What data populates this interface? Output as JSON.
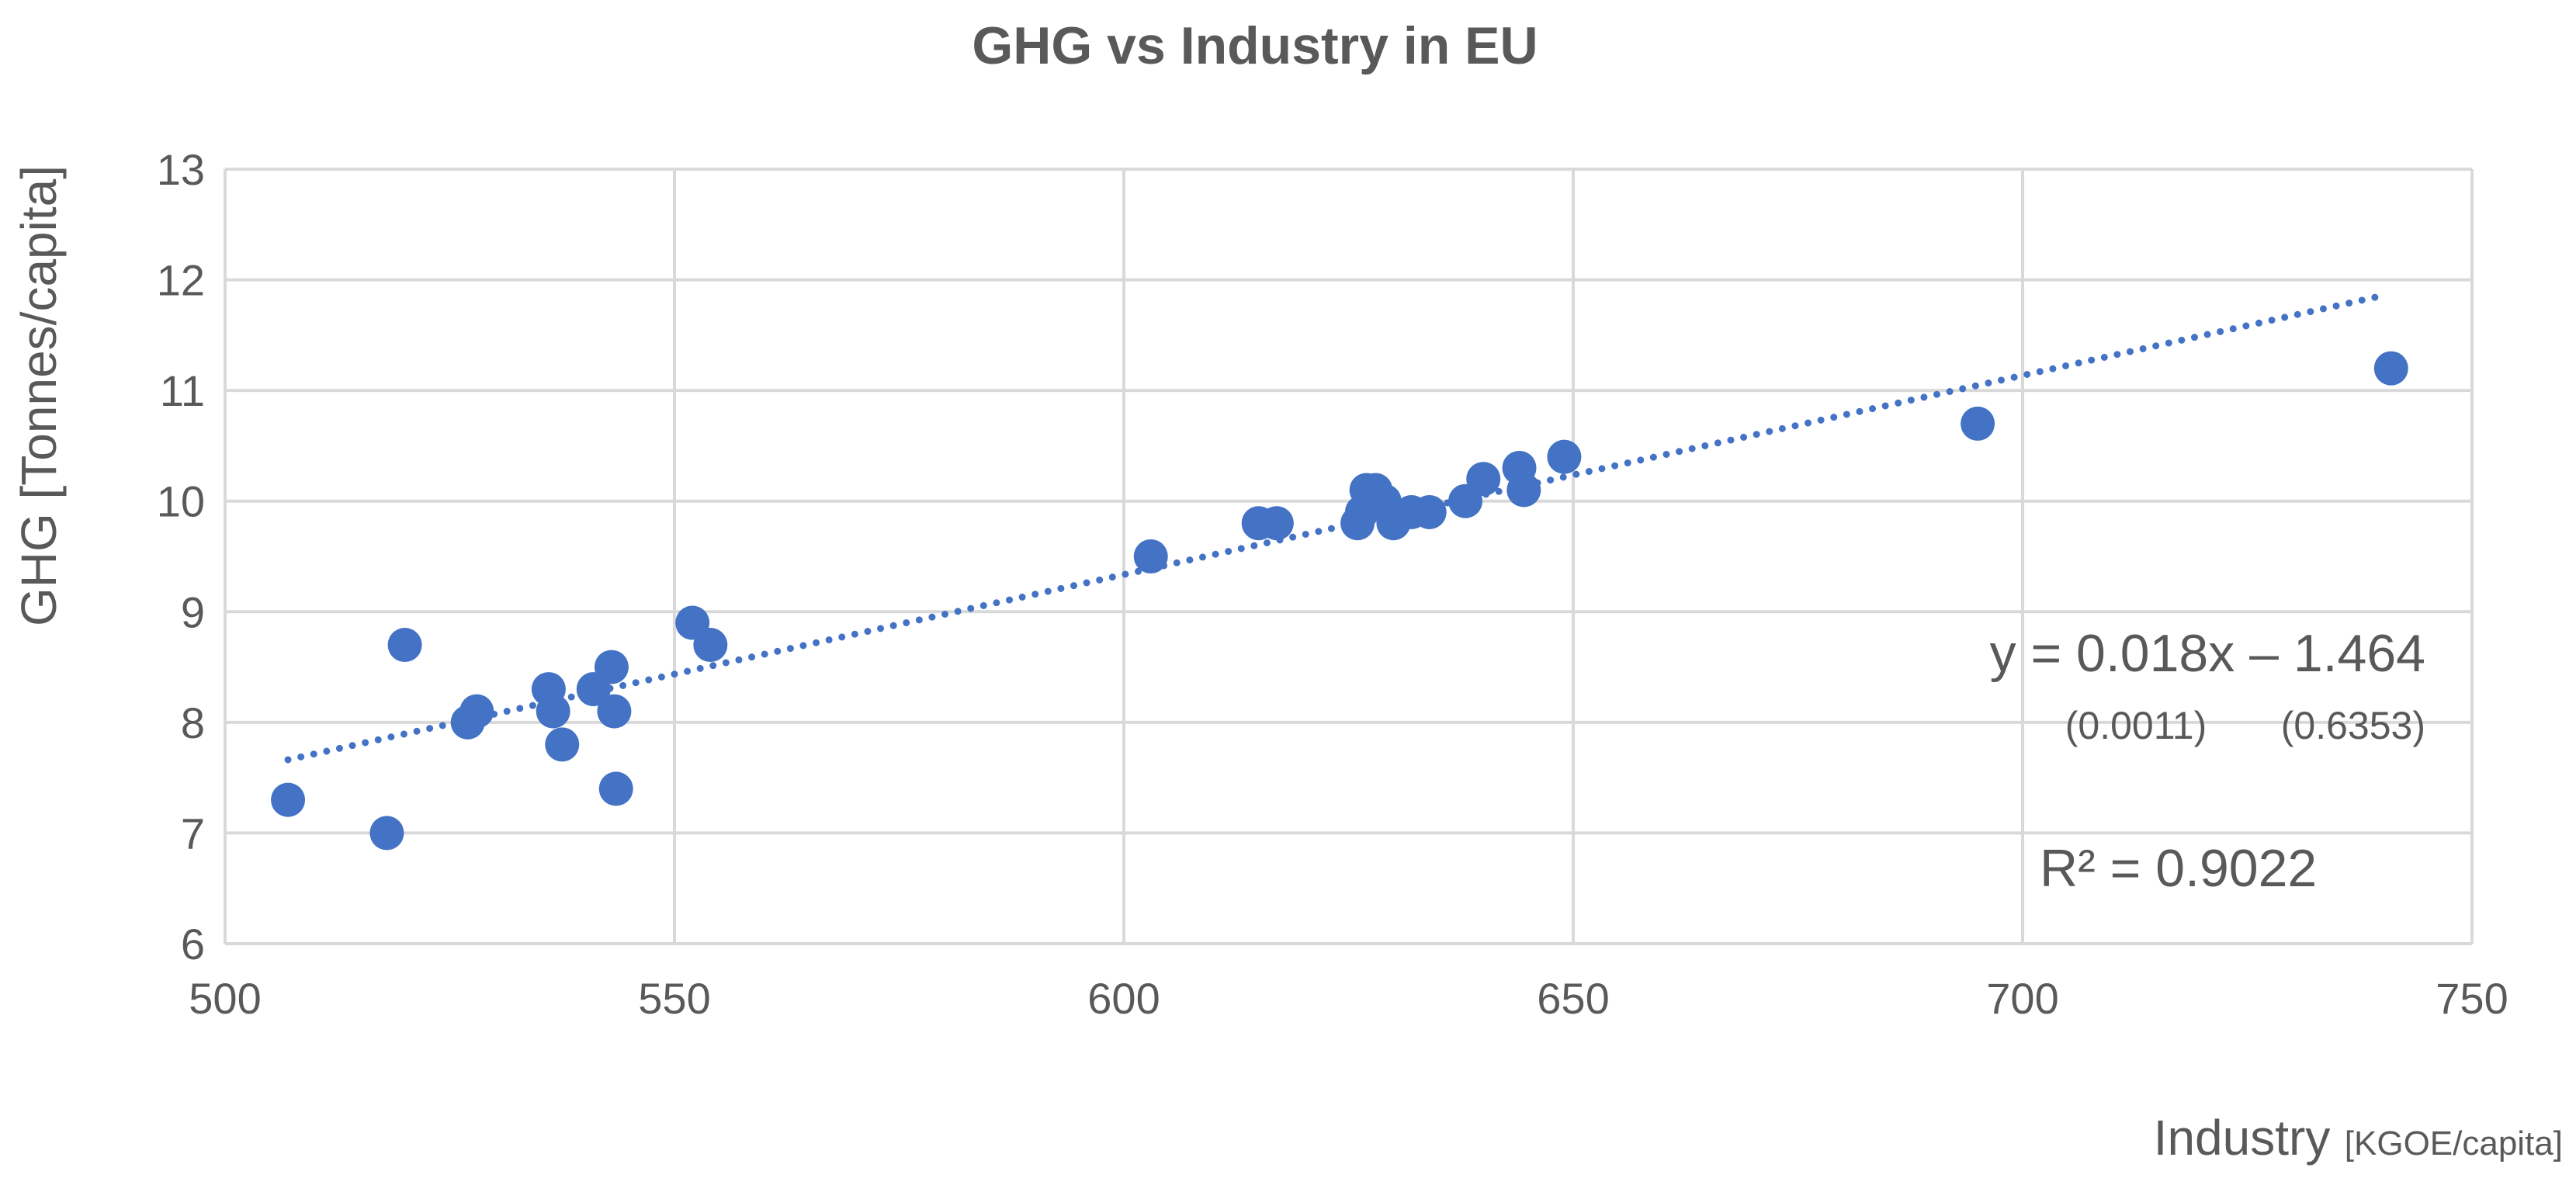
{
  "chart_data": {
    "type": "scatter",
    "title": "GHG vs Industry in EU",
    "xlabel": "Industry",
    "xlabel_unit": "[KGOE/capita]",
    "ylabel": "GHG [Tonnes/capita]",
    "xlim": [
      500,
      750
    ],
    "ylim": [
      6,
      13
    ],
    "xticks": [
      500,
      550,
      600,
      650,
      700,
      750
    ],
    "yticks": [
      6,
      7,
      8,
      9,
      10,
      11,
      12,
      13
    ],
    "grid": true,
    "series": [
      {
        "color": "#4472C4",
        "points": [
          {
            "x": 507,
            "y": 7.3
          },
          {
            "x": 518,
            "y": 7.0
          },
          {
            "x": 520,
            "y": 8.7
          },
          {
            "x": 527,
            "y": 8.0
          },
          {
            "x": 528,
            "y": 8.1
          },
          {
            "x": 536,
            "y": 8.3
          },
          {
            "x": 536.5,
            "y": 8.1
          },
          {
            "x": 537.5,
            "y": 7.8
          },
          {
            "x": 541,
            "y": 8.3
          },
          {
            "x": 543,
            "y": 8.5
          },
          {
            "x": 543.3,
            "y": 8.1
          },
          {
            "x": 543.5,
            "y": 7.4
          },
          {
            "x": 552,
            "y": 8.9
          },
          {
            "x": 554,
            "y": 8.7
          },
          {
            "x": 603,
            "y": 9.5
          },
          {
            "x": 615,
            "y": 9.8
          },
          {
            "x": 617,
            "y": 9.8
          },
          {
            "x": 626,
            "y": 9.8
          },
          {
            "x": 626.5,
            "y": 9.9
          },
          {
            "x": 627,
            "y": 10.1
          },
          {
            "x": 628,
            "y": 10.1
          },
          {
            "x": 629,
            "y": 10.0
          },
          {
            "x": 630,
            "y": 9.8
          },
          {
            "x": 632,
            "y": 9.9
          },
          {
            "x": 634,
            "y": 9.9
          },
          {
            "x": 638,
            "y": 10.0
          },
          {
            "x": 640,
            "y": 10.2
          },
          {
            "x": 644,
            "y": 10.3
          },
          {
            "x": 644.5,
            "y": 10.1
          },
          {
            "x": 649,
            "y": 10.4
          },
          {
            "x": 695,
            "y": 10.7
          },
          {
            "x": 741,
            "y": 11.2
          }
        ]
      }
    ],
    "trendline": {
      "type": "linear",
      "style": "dotted",
      "color": "#4472C4",
      "slope": 0.018,
      "intercept": -1.464,
      "x_range": [
        507,
        740
      ]
    },
    "annotations": {
      "equation": "y = 0.018x – 1.464",
      "slope_se": "(0.0011)",
      "intercept_se": "(0.6353)",
      "r2": "R² = 0.9022"
    }
  }
}
